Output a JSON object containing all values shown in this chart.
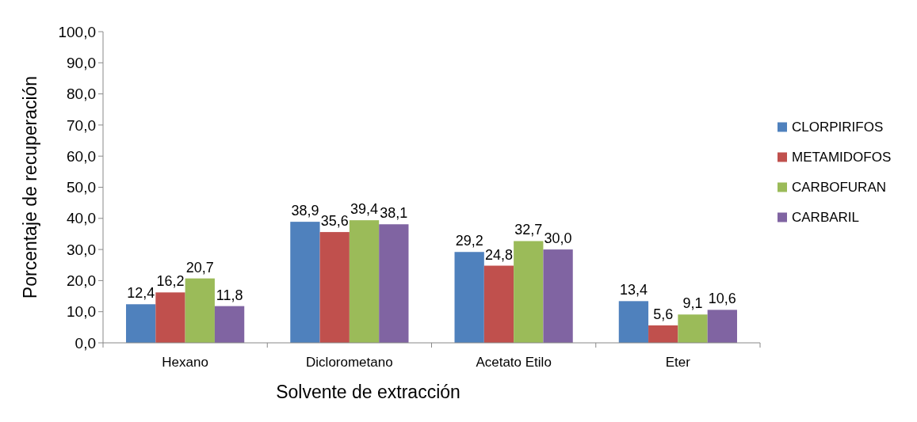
{
  "chart_data": {
    "type": "bar",
    "xlabel": "Solvente de extracción",
    "ylabel": "Porcentaje de recuperación",
    "categories": [
      "Hexano",
      "Diclorometano",
      "Acetato Etilo",
      "Eter"
    ],
    "series": [
      {
        "name": "CLORPIRIFOS",
        "color": "#4f81bd",
        "values": [
          12.4,
          38.9,
          29.2,
          13.4
        ],
        "value_labels": [
          "12,4",
          "38,9",
          "29,2",
          "13,4"
        ]
      },
      {
        "name": "METAMIDOFOS",
        "color": "#c0504d",
        "values": [
          16.2,
          35.6,
          24.8,
          5.6
        ],
        "value_labels": [
          "16,2",
          "35,6",
          "24,8",
          "5,6"
        ]
      },
      {
        "name": "CARBOFURAN",
        "color": "#9bbb59",
        "values": [
          20.7,
          39.4,
          32.7,
          9.1
        ],
        "value_labels": [
          "20,7",
          "39,4",
          "32,7",
          "9,1"
        ]
      },
      {
        "name": "CARBARIL",
        "color": "#8064a2",
        "values": [
          11.8,
          38.1,
          30.0,
          10.6
        ],
        "value_labels": [
          "11,8",
          "38,1",
          "30,0",
          "10,6"
        ]
      }
    ],
    "ylim": [
      0,
      100
    ],
    "yticks": [
      {
        "value": 0,
        "label": "0,0"
      },
      {
        "value": 10,
        "label": "10,0"
      },
      {
        "value": 20,
        "label": "20,0"
      },
      {
        "value": 30,
        "label": "30,0"
      },
      {
        "value": 40,
        "label": "40,0"
      },
      {
        "value": 50,
        "label": "50,0"
      },
      {
        "value": 60,
        "label": "60,0"
      },
      {
        "value": 70,
        "label": "70,0"
      },
      {
        "value": 80,
        "label": "80,0"
      },
      {
        "value": 90,
        "label": "90,0"
      },
      {
        "value": 100,
        "label": "100,0"
      }
    ],
    "grid": false,
    "legend": "right"
  }
}
